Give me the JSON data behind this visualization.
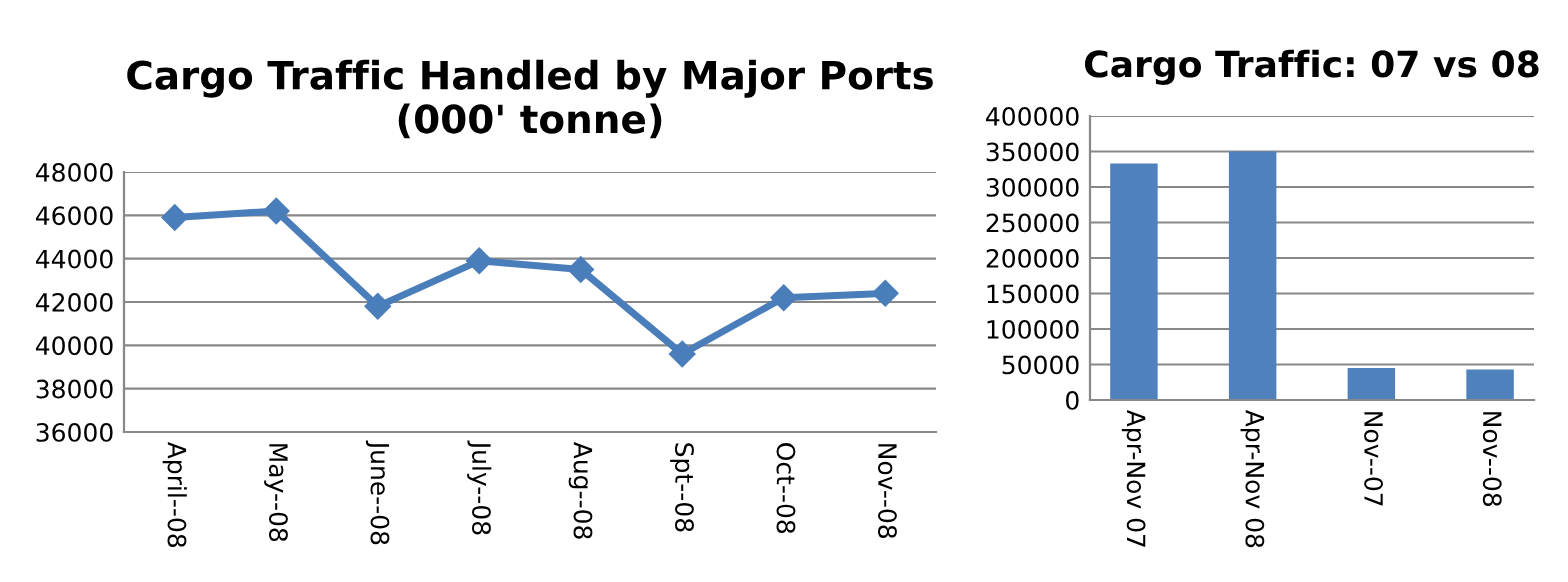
{
  "chart_data": [
    {
      "type": "line",
      "title": "Cargo Traffic Handled by Major Ports\n(000' tonne)",
      "categories": [
        "April--08",
        "May--08",
        "June--08",
        "July--08",
        "Aug--08",
        "Spt--08",
        "Oct--08",
        "Nov--08"
      ],
      "series": [
        {
          "color": "#4a7ebb",
          "values": [
            45900,
            46200,
            41800,
            43900,
            43500,
            39600,
            42200,
            42400
          ]
        }
      ],
      "ylim": [
        36000,
        48000
      ],
      "yticks": [
        36000,
        38000,
        40000,
        42000,
        44000,
        46000,
        48000
      ],
      "grid": "y",
      "marker": "diamond",
      "legend": false
    },
    {
      "type": "bar",
      "title": "Cargo Traffic: 07 vs 08",
      "categories": [
        "Apr-Nov 07",
        "Apr-Nov 08",
        "Nov--07",
        "Nov--08"
      ],
      "series": [
        {
          "color": "#4f81bd",
          "values": [
            333000,
            350000,
            45000,
            43000
          ]
        }
      ],
      "ylim": [
        0,
        400000
      ],
      "yticks": [
        0,
        50000,
        100000,
        150000,
        200000,
        250000,
        300000,
        350000,
        400000
      ],
      "grid": "y",
      "legend": false
    }
  ]
}
